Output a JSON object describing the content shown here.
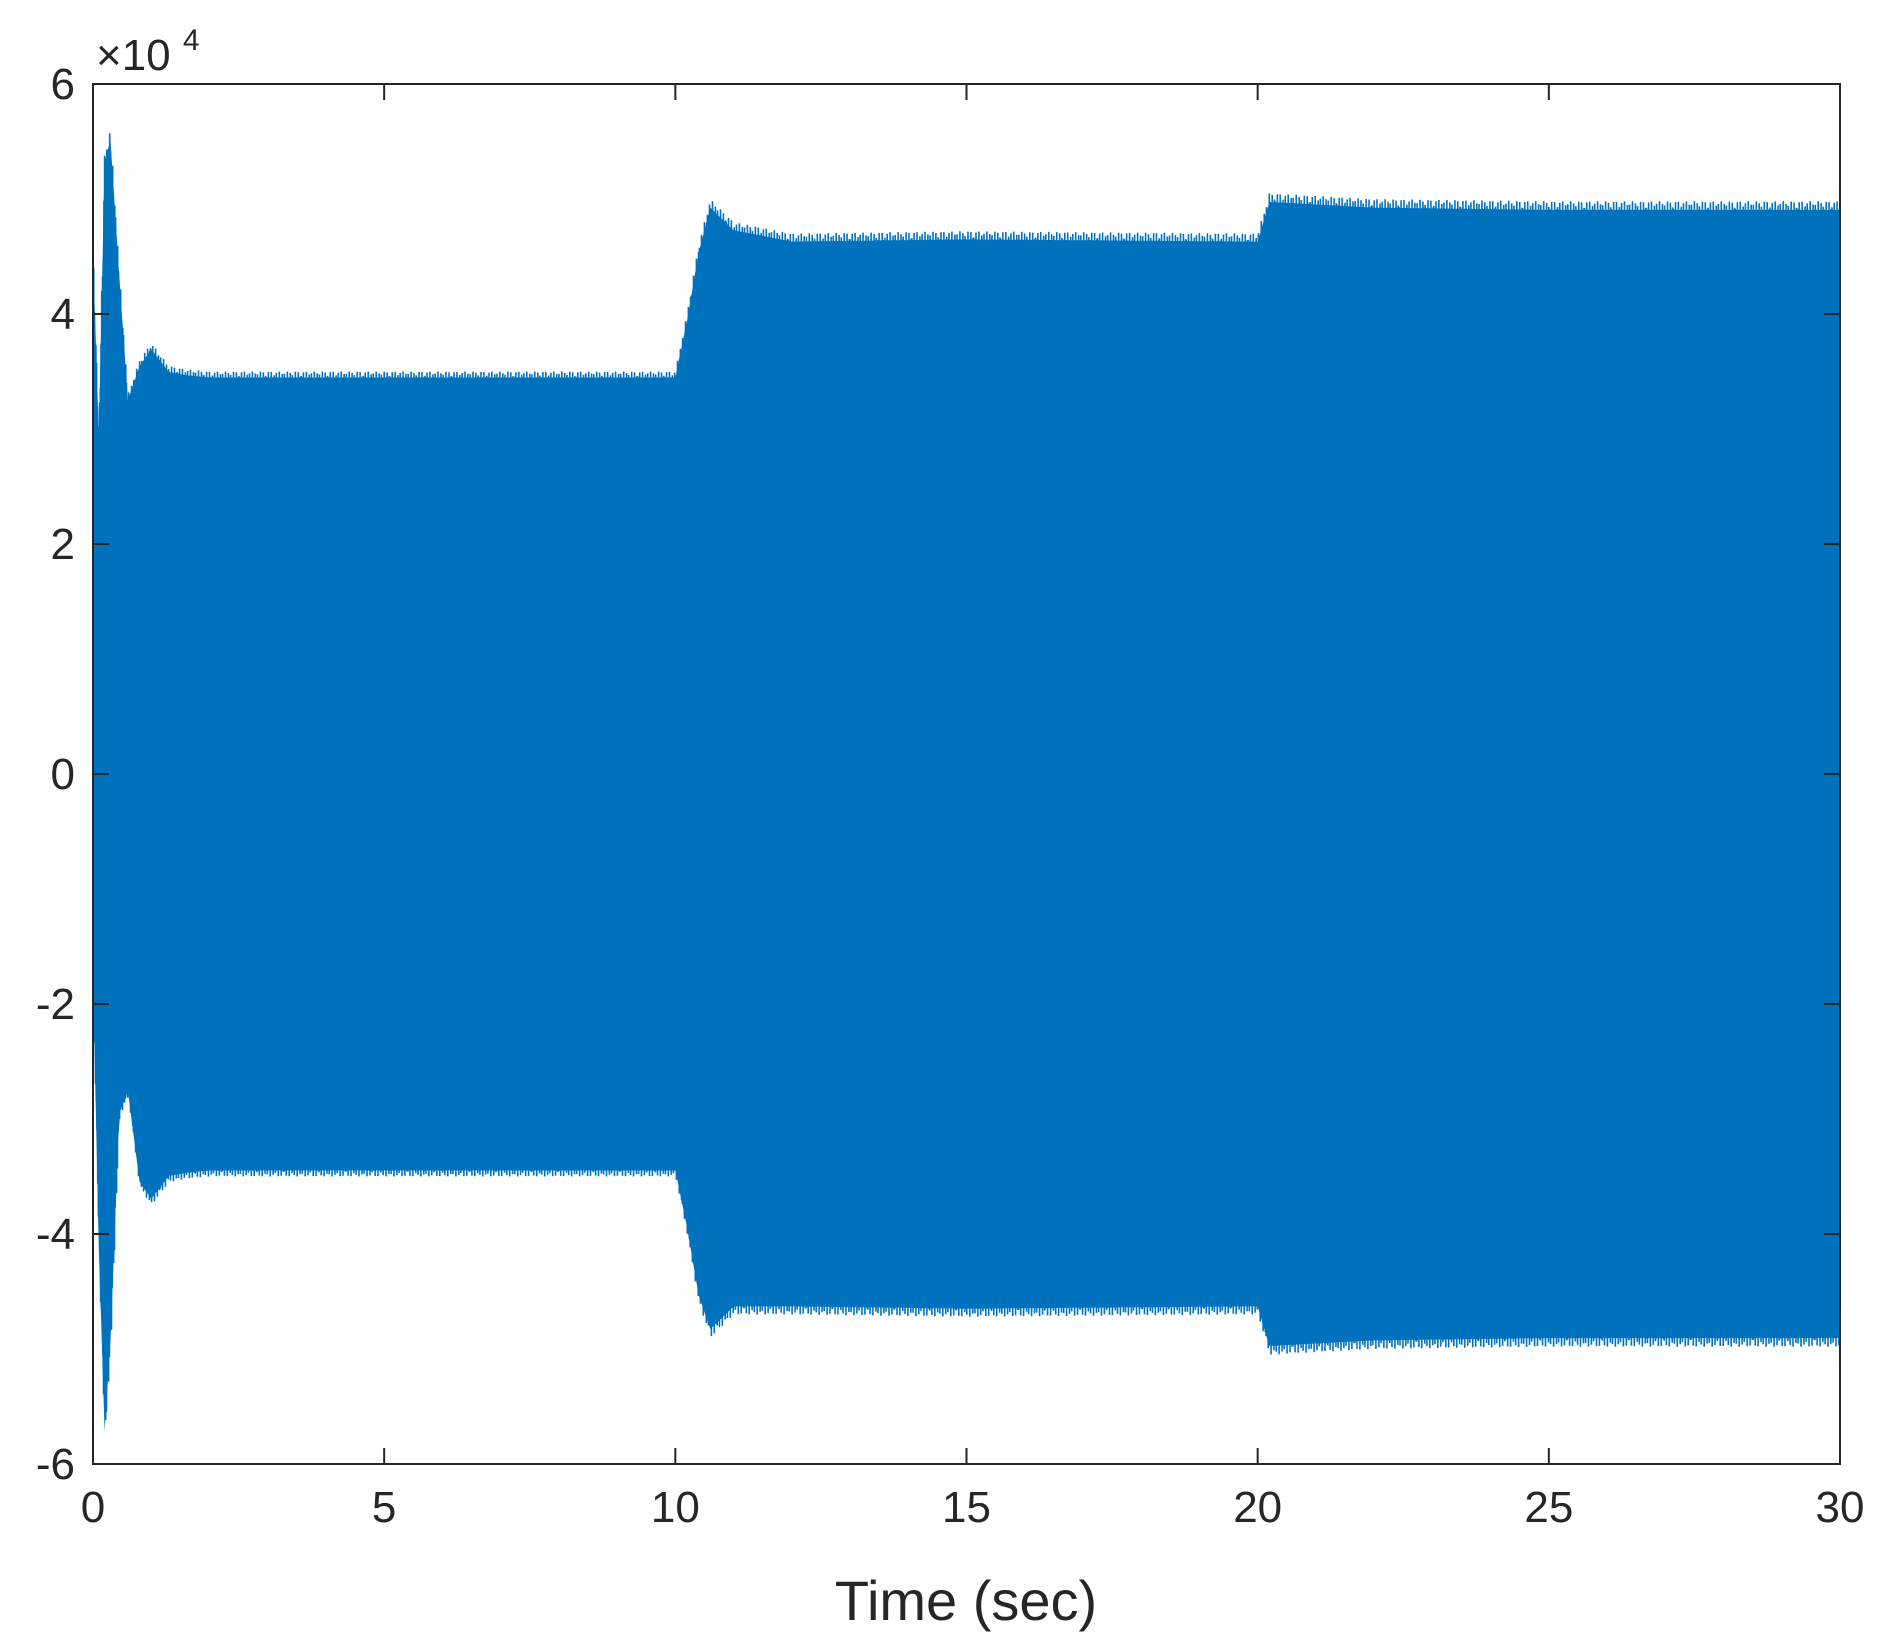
{
  "chart_data": {
    "type": "line",
    "title": "",
    "xlabel": "Time (sec)",
    "ylabel": "",
    "xlim": [
      0,
      30
    ],
    "ylim": [
      -6,
      6
    ],
    "y_multiplier": {
      "base": "×10",
      "exponent": "4"
    },
    "xticks": [
      {
        "value": 0,
        "label": "0"
      },
      {
        "value": 5,
        "label": "5"
      },
      {
        "value": 10,
        "label": "10"
      },
      {
        "value": 15,
        "label": "15"
      },
      {
        "value": 20,
        "label": "20"
      },
      {
        "value": 25,
        "label": "25"
      },
      {
        "value": 30,
        "label": "30"
      }
    ],
    "yticks": [
      {
        "value": -6,
        "label": "-6"
      },
      {
        "value": -4,
        "label": "-4"
      },
      {
        "value": -2,
        "label": "-2"
      },
      {
        "value": 0,
        "label": "0"
      },
      {
        "value": 2,
        "label": "2"
      },
      {
        "value": 4,
        "label": "4"
      },
      {
        "value": 6,
        "label": "6"
      }
    ],
    "grid": false,
    "series_color": "#0072BD",
    "series": [
      {
        "name": "",
        "description_envelope": {
          "x": [
            0,
            0.1,
            0.2,
            0.3,
            0.45,
            0.6,
            0.8,
            1.0,
            1.3,
            1.6,
            2,
            5,
            9.9,
            10.0,
            10.2,
            10.4,
            10.6,
            11,
            12,
            15,
            19.9,
            20.0,
            20.2,
            22,
            25,
            30
          ],
          "upper": [
            4.6,
            3.0,
            5.4,
            5.6,
            4.4,
            3.3,
            3.6,
            3.75,
            3.55,
            3.52,
            3.5,
            3.5,
            3.5,
            3.5,
            4.0,
            4.6,
            5.0,
            4.8,
            4.7,
            4.72,
            4.7,
            4.7,
            5.05,
            5.0,
            4.98,
            4.98
          ],
          "lower": [
            -1.8,
            -4.2,
            -5.8,
            -5.0,
            -3.0,
            -2.8,
            -3.6,
            -3.75,
            -3.55,
            -3.52,
            -3.5,
            -3.5,
            -3.5,
            -3.5,
            -4.0,
            -4.6,
            -4.9,
            -4.7,
            -4.7,
            -4.72,
            -4.7,
            -4.7,
            -5.05,
            -5.0,
            -4.98,
            -4.98
          ]
        }
      }
    ]
  }
}
